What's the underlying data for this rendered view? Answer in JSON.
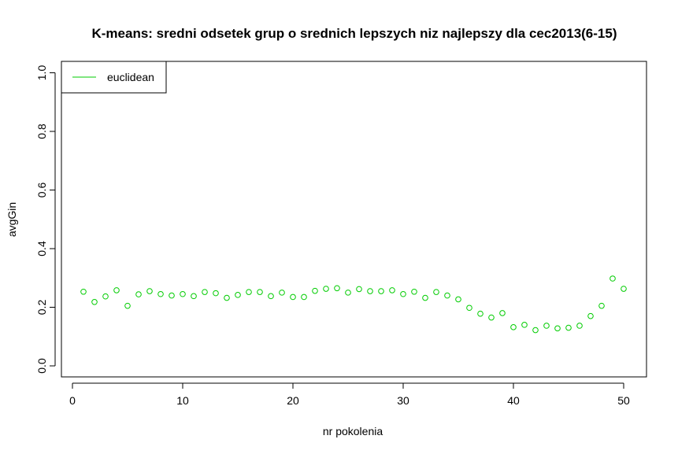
{
  "chart_data": {
    "type": "scatter",
    "title": "K-means: sredni odsetek grup o srednich lepszych niz najlepszy dla cec2013(6-15)",
    "xlabel": "nr pokolenia",
    "ylabel": "avgGin",
    "xlim": [
      0,
      51
    ],
    "ylim": [
      0,
      1
    ],
    "x_ticks": [
      0,
      10,
      20,
      30,
      40,
      50
    ],
    "x_tick_labels": [
      "0",
      "10",
      "20",
      "30",
      "40",
      "50"
    ],
    "y_ticks": [
      0,
      0.2,
      0.4,
      0.6,
      0.8,
      1
    ],
    "y_tick_labels": [
      "0.0",
      "0.2",
      "0.4",
      "0.6",
      "0.8",
      "1.0"
    ],
    "grid": false,
    "legend_position": "top-left",
    "marker": "open-circle",
    "series": [
      {
        "name": "euclidean",
        "color": "#00cc00",
        "x": [
          1,
          2,
          3,
          4,
          5,
          6,
          7,
          8,
          9,
          10,
          11,
          12,
          13,
          14,
          15,
          16,
          17,
          18,
          19,
          20,
          21,
          22,
          23,
          24,
          25,
          26,
          27,
          28,
          29,
          30,
          31,
          32,
          33,
          34,
          35,
          36,
          37,
          38,
          39,
          40,
          41,
          42,
          43,
          44,
          45,
          46,
          47,
          48,
          49,
          50
        ],
        "y": [
          0.253,
          0.218,
          0.237,
          0.258,
          0.205,
          0.244,
          0.255,
          0.245,
          0.24,
          0.245,
          0.238,
          0.252,
          0.248,
          0.232,
          0.242,
          0.252,
          0.252,
          0.238,
          0.25,
          0.235,
          0.235,
          0.256,
          0.263,
          0.265,
          0.25,
          0.262,
          0.255,
          0.255,
          0.258,
          0.245,
          0.253,
          0.232,
          0.252,
          0.24,
          0.227,
          0.198,
          0.178,
          0.165,
          0.18,
          0.132,
          0.14,
          0.122,
          0.137,
          0.128,
          0.13,
          0.137,
          0.17,
          0.205,
          0.298,
          0.263
        ]
      }
    ]
  }
}
